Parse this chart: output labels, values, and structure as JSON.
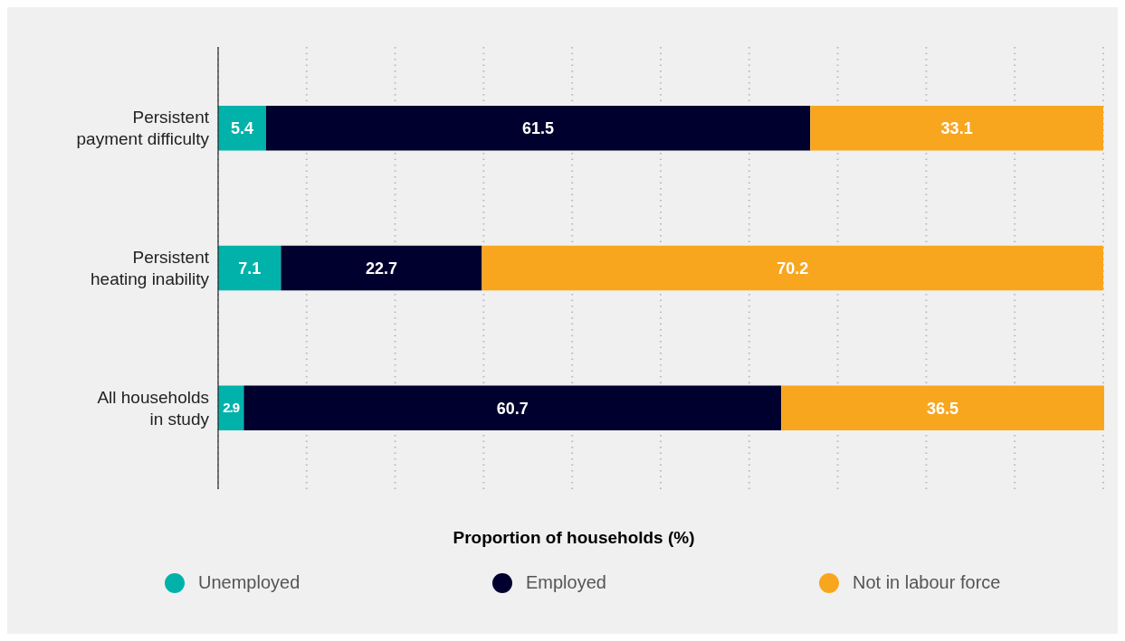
{
  "chart_data": {
    "type": "bar",
    "orientation": "horizontal",
    "stacked": true,
    "xlabel": "Proportion of households (%)",
    "categories": [
      "Persistent\npayment difficulty",
      "Persistent\nheating inability",
      "All households\nin study"
    ],
    "series": [
      {
        "name": "Unemployed",
        "color": "#00b2a9",
        "values": [
          5.4,
          7.1,
          2.9
        ]
      },
      {
        "name": "Employed",
        "color": "#00002e",
        "values": [
          61.5,
          22.7,
          60.7
        ]
      },
      {
        "name": "Not in labour force",
        "color": "#f9a61f",
        "values": [
          33.1,
          70.2,
          36.5
        ]
      }
    ],
    "xlim": [
      0,
      100
    ],
    "xticks": [
      {
        "value": 0,
        "label": null
      },
      {
        "value": 10,
        "label": null
      },
      {
        "value": 20,
        "label": null
      },
      {
        "value": 30,
        "label": null
      },
      {
        "value": 40,
        "label": null
      },
      {
        "value": 50,
        "label": null
      },
      {
        "value": 60,
        "label": null
      },
      {
        "value": 70,
        "label": null
      },
      {
        "value": 80,
        "label": null
      },
      {
        "value": 90,
        "label": null
      },
      {
        "value": 100,
        "label": null
      }
    ],
    "tick_labels": "y",
    "grid": "x",
    "data_labels": true,
    "legend": "bottom"
  }
}
